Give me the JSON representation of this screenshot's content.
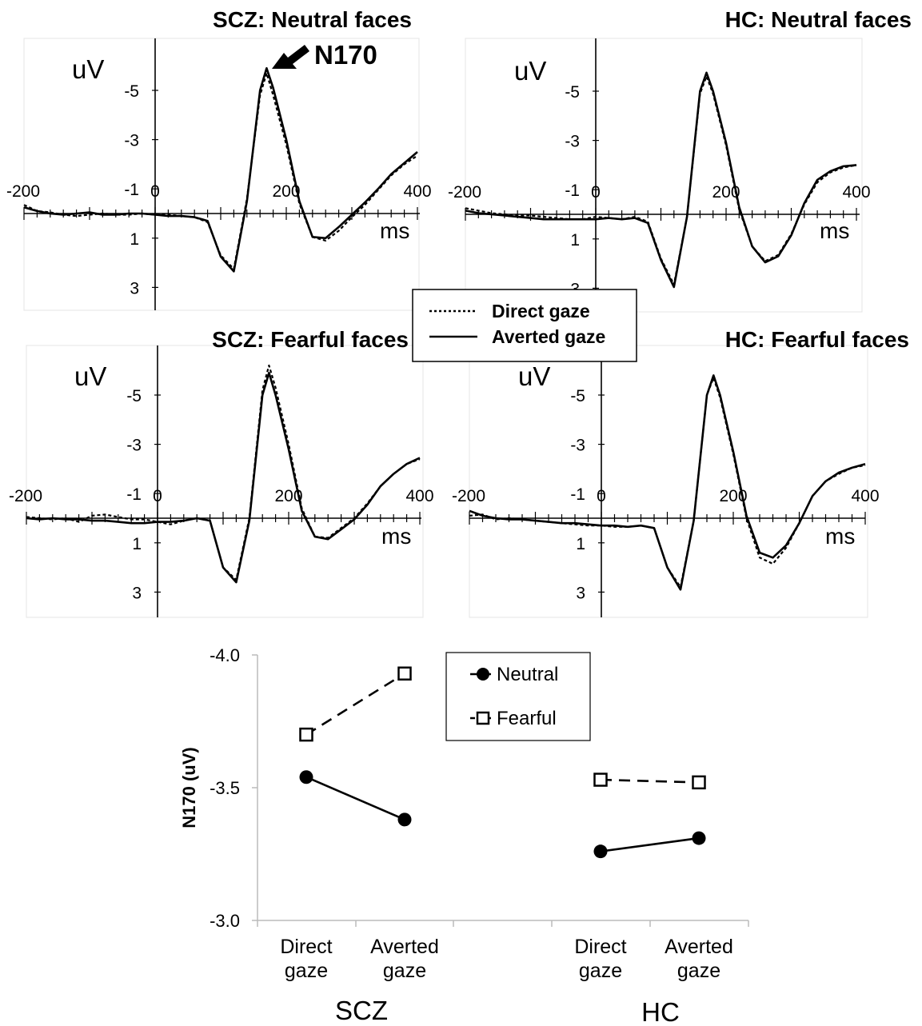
{
  "chart_data": [
    {
      "type": "line",
      "title": "SCZ: Neutral faces",
      "ylabel": "uV",
      "xlabel": "ms",
      "xlim": [
        -200,
        400
      ],
      "ylim": [
        -7,
        4
      ],
      "y_inverted": true,
      "x_ticks": [
        -200,
        0,
        200,
        400
      ],
      "y_ticks": [
        -5,
        -3,
        -1,
        1,
        3
      ],
      "annotation": "N170",
      "series": [
        {
          "name": "Direct gaze",
          "style": "dotted",
          "x": [
            -200,
            -180,
            -160,
            -140,
            -120,
            -100,
            -80,
            -60,
            -40,
            -20,
            0,
            20,
            40,
            60,
            80,
            100,
            120,
            140,
            160,
            170,
            180,
            200,
            220,
            240,
            260,
            280,
            300,
            320,
            340,
            360,
            380,
            400
          ],
          "y": [
            -0.35,
            -0.1,
            -0.05,
            0.05,
            0.1,
            0.05,
            0.0,
            0.05,
            0.05,
            0.0,
            0.05,
            0.05,
            0.1,
            0.15,
            0.35,
            1.7,
            2.25,
            -0.6,
            -4.8,
            -5.7,
            -4.8,
            -2.8,
            -0.4,
            0.95,
            1.1,
            0.7,
            0.15,
            -0.35,
            -0.95,
            -1.55,
            -2.0,
            -2.35
          ]
        },
        {
          "name": "Averted gaze",
          "style": "solid",
          "x": [
            -200,
            -180,
            -160,
            -140,
            -120,
            -100,
            -80,
            -60,
            -40,
            -20,
            0,
            20,
            40,
            60,
            80,
            100,
            120,
            140,
            160,
            170,
            180,
            200,
            220,
            240,
            260,
            280,
            300,
            320,
            340,
            360,
            380,
            400
          ],
          "y": [
            -0.25,
            -0.1,
            0.0,
            0.05,
            0.0,
            -0.05,
            0.05,
            0.05,
            0.0,
            0.0,
            0.05,
            0.1,
            0.1,
            0.15,
            0.3,
            1.75,
            2.35,
            -0.5,
            -5.0,
            -5.9,
            -5.1,
            -3.0,
            -0.5,
            0.95,
            1.0,
            0.55,
            0.05,
            -0.45,
            -1.0,
            -1.6,
            -2.05,
            -2.5
          ]
        }
      ]
    },
    {
      "type": "line",
      "title": "HC: Neutral faces",
      "ylabel": "uV",
      "xlabel": "ms",
      "xlim": [
        -200,
        400
      ],
      "ylim": [
        -7,
        4
      ],
      "y_inverted": true,
      "x_ticks": [
        -200,
        0,
        200,
        400
      ],
      "y_ticks": [
        -5,
        -3,
        -1,
        1,
        3
      ],
      "series": [
        {
          "name": "Direct gaze",
          "style": "dotted",
          "x": [
            -200,
            -180,
            -160,
            -140,
            -120,
            -100,
            -80,
            -60,
            -40,
            -20,
            0,
            20,
            40,
            60,
            80,
            100,
            120,
            140,
            160,
            170,
            180,
            200,
            220,
            240,
            260,
            280,
            300,
            320,
            340,
            360,
            380,
            400
          ],
          "y": [
            -0.25,
            -0.15,
            -0.05,
            0.0,
            0.05,
            0.05,
            0.1,
            0.15,
            0.2,
            0.2,
            0.1,
            0.15,
            0.2,
            0.1,
            0.3,
            1.8,
            2.85,
            0.1,
            -4.9,
            -5.6,
            -4.9,
            -2.8,
            -0.2,
            1.3,
            1.9,
            1.65,
            0.8,
            -0.4,
            -1.3,
            -1.7,
            -1.9,
            -2.0
          ]
        },
        {
          "name": "Averted gaze",
          "style": "solid",
          "x": [
            -200,
            -180,
            -160,
            -140,
            -120,
            -100,
            -80,
            -60,
            -40,
            -20,
            0,
            20,
            40,
            60,
            80,
            100,
            120,
            140,
            160,
            170,
            180,
            200,
            220,
            240,
            260,
            280,
            300,
            320,
            340,
            360,
            380,
            400
          ],
          "y": [
            -0.15,
            -0.05,
            0.0,
            0.05,
            0.1,
            0.15,
            0.2,
            0.2,
            0.2,
            0.2,
            0.2,
            0.15,
            0.2,
            0.15,
            0.35,
            1.85,
            2.95,
            0.1,
            -5.0,
            -5.75,
            -5.0,
            -2.9,
            -0.3,
            1.3,
            1.95,
            1.7,
            0.85,
            -0.45,
            -1.4,
            -1.75,
            -1.95,
            -2.0
          ]
        }
      ]
    },
    {
      "type": "line",
      "title": "SCZ: Fearful faces",
      "ylabel": "uV",
      "xlabel": "ms",
      "xlim": [
        -200,
        400
      ],
      "ylim": [
        -7,
        4
      ],
      "y_inverted": true,
      "x_ticks": [
        -200,
        0,
        200,
        400
      ],
      "y_ticks": [
        -5,
        -3,
        -1,
        1,
        3
      ],
      "series": [
        {
          "name": "Direct gaze",
          "style": "dotted",
          "x": [
            -200,
            -180,
            -160,
            -140,
            -120,
            -100,
            -80,
            -60,
            -40,
            -20,
            0,
            20,
            40,
            60,
            80,
            100,
            120,
            140,
            160,
            170,
            180,
            200,
            220,
            240,
            260,
            280,
            300,
            320,
            340,
            360,
            380,
            400
          ],
          "y": [
            -0.05,
            0.0,
            0.05,
            0.0,
            0.15,
            -0.1,
            -0.15,
            -0.05,
            0.05,
            0.05,
            0.15,
            0.25,
            0.1,
            0.0,
            0.1,
            2.0,
            2.5,
            0.0,
            -5.2,
            -6.2,
            -5.3,
            -3.0,
            -0.4,
            0.75,
            0.8,
            0.4,
            0.0,
            -0.6,
            -1.3,
            -1.8,
            -2.2,
            -2.4
          ]
        },
        {
          "name": "Averted gaze",
          "style": "solid",
          "x": [
            -200,
            -180,
            -160,
            -140,
            -120,
            -100,
            -80,
            -60,
            -40,
            -20,
            0,
            20,
            40,
            60,
            80,
            100,
            120,
            140,
            160,
            170,
            180,
            200,
            220,
            240,
            260,
            280,
            300,
            320,
            340,
            360,
            380,
            400
          ],
          "y": [
            0.0,
            0.05,
            0.0,
            0.05,
            0.05,
            0.1,
            0.1,
            0.15,
            0.2,
            0.2,
            0.15,
            0.15,
            0.1,
            0.0,
            0.1,
            2.0,
            2.6,
            0.1,
            -5.0,
            -5.9,
            -5.0,
            -2.8,
            -0.3,
            0.75,
            0.85,
            0.45,
            0.05,
            -0.55,
            -1.3,
            -1.8,
            -2.2,
            -2.45
          ]
        }
      ]
    },
    {
      "type": "line",
      "title": "HC: Fearful faces",
      "ylabel": "uV",
      "xlabel": "ms",
      "xlim": [
        -200,
        400
      ],
      "ylim": [
        -7,
        4
      ],
      "y_inverted": true,
      "x_ticks": [
        -200,
        0,
        200,
        400
      ],
      "y_ticks": [
        -5,
        -3,
        -1,
        1,
        3
      ],
      "series": [
        {
          "name": "Direct gaze",
          "style": "dotted",
          "x": [
            -200,
            -180,
            -160,
            -140,
            -120,
            -100,
            -80,
            -60,
            -40,
            -20,
            0,
            20,
            40,
            60,
            80,
            100,
            120,
            140,
            160,
            170,
            180,
            200,
            220,
            240,
            260,
            280,
            300,
            320,
            340,
            360,
            380,
            400
          ],
          "y": [
            -0.1,
            -0.15,
            0.05,
            0.0,
            0.05,
            0.1,
            0.15,
            0.2,
            0.25,
            0.3,
            0.3,
            0.35,
            0.35,
            0.3,
            0.4,
            2.0,
            2.8,
            0.1,
            -5.0,
            -5.7,
            -4.9,
            -2.6,
            0.0,
            1.6,
            1.85,
            1.2,
            0.2,
            -0.9,
            -1.5,
            -1.8,
            -2.05,
            -2.15
          ]
        },
        {
          "name": "Averted gaze",
          "style": "solid",
          "x": [
            -200,
            -180,
            -160,
            -140,
            -120,
            -100,
            -80,
            -60,
            -40,
            -20,
            0,
            20,
            40,
            60,
            80,
            100,
            120,
            140,
            160,
            170,
            180,
            200,
            220,
            240,
            260,
            280,
            300,
            320,
            340,
            360,
            380,
            400
          ],
          "y": [
            -0.3,
            -0.1,
            0.0,
            0.05,
            0.05,
            0.1,
            0.15,
            0.2,
            0.2,
            0.25,
            0.3,
            0.3,
            0.35,
            0.3,
            0.4,
            2.0,
            2.9,
            0.1,
            -5.0,
            -5.8,
            -5.0,
            -2.7,
            -0.1,
            1.4,
            1.6,
            1.1,
            0.2,
            -0.9,
            -1.5,
            -1.85,
            -2.05,
            -2.2
          ]
        }
      ]
    },
    {
      "type": "line",
      "title": "",
      "ylabel": "N170 (uV)",
      "ylim": [
        -3.0,
        -4.0
      ],
      "y_ticks": [
        -4.0,
        -3.5,
        -3.0
      ],
      "categories": [
        "Direct gaze",
        "Averted gaze",
        "",
        "Direct gaze",
        "Averted gaze"
      ],
      "groups": [
        "SCZ",
        "HC"
      ],
      "legend": "top-center",
      "series": [
        {
          "name": "Neutral",
          "marker": "filled-circle",
          "style": "solid",
          "points": [
            {
              "group": "SCZ",
              "category": "Direct gaze",
              "value": -3.54
            },
            {
              "group": "SCZ",
              "category": "Averted gaze",
              "value": -3.38
            },
            {
              "group": "HC",
              "category": "Direct gaze",
              "value": -3.26
            },
            {
              "group": "HC",
              "category": "Averted gaze",
              "value": -3.31
            }
          ]
        },
        {
          "name": "Fearful",
          "marker": "open-square",
          "style": "dashed",
          "points": [
            {
              "group": "SCZ",
              "category": "Direct gaze",
              "value": -3.7
            },
            {
              "group": "SCZ",
              "category": "Averted gaze",
              "value": -3.93
            },
            {
              "group": "HC",
              "category": "Direct gaze",
              "value": -3.53
            },
            {
              "group": "HC",
              "category": "Averted gaze",
              "value": -3.52
            }
          ]
        }
      ]
    }
  ],
  "legend_top": [
    {
      "label": "Direct gaze",
      "style": "dotted"
    },
    {
      "label": "Averted gaze",
      "style": "solid"
    }
  ]
}
